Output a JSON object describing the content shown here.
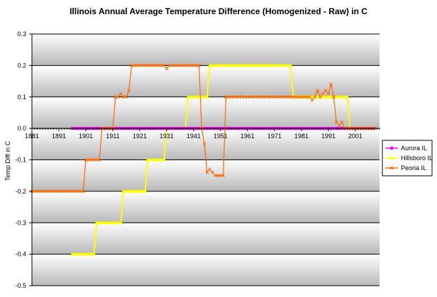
{
  "chart_data": {
    "type": "line",
    "title": "Illinois Annual Average Temperature Difference (Homogenized - Raw) in C",
    "xlabel": "",
    "ylabel": "Temp Diff in C",
    "xlim": [
      1881,
      2010
    ],
    "ylim": [
      -0.5,
      0.3
    ],
    "x_ticks": [
      "1881",
      "1891",
      "1901",
      "1911",
      "1921",
      "1931",
      "1941",
      "1951",
      "1961",
      "1971",
      "1981",
      "1991",
      "2001"
    ],
    "y_ticks": [
      "0.3",
      "0.2",
      "0.1",
      "0.0",
      "-0.1",
      "-0.2",
      "-0.3",
      "-0.4",
      "-0.5"
    ],
    "grid": true,
    "legend_position": "right",
    "series": [
      {
        "name": "Aurora IL",
        "color": "#ff00ff",
        "marker": "square",
        "points": [
          [
            1896,
            0.0
          ],
          [
            2008,
            0.0
          ]
        ],
        "step": 1
      },
      {
        "name": "Hillsboro IL",
        "color": "#ffff00",
        "marker": "triangle",
        "points": [
          [
            1896,
            -0.4
          ],
          [
            1904,
            -0.4
          ],
          [
            1905,
            -0.3
          ],
          [
            1914,
            -0.3
          ],
          [
            1915,
            -0.2
          ],
          [
            1923,
            -0.2
          ],
          [
            1924,
            -0.1
          ],
          [
            1930,
            -0.1
          ],
          [
            1931,
            0.0
          ],
          [
            1938,
            0.0
          ],
          [
            1939,
            0.1
          ],
          [
            1946,
            0.1
          ],
          [
            1947,
            0.2
          ],
          [
            1977,
            0.2
          ],
          [
            1978,
            0.1
          ],
          [
            1998,
            0.1
          ],
          [
            1999,
            0.0
          ],
          [
            2008,
            0.0
          ]
        ],
        "step": 1
      },
      {
        "name": "Peoria IL",
        "color": "#ff6600",
        "marker": "x",
        "points": [
          [
            1881,
            -0.2
          ],
          [
            1900,
            -0.2
          ],
          [
            1901,
            -0.1
          ],
          [
            1906,
            -0.1
          ],
          [
            1907,
            0.0
          ],
          [
            1911,
            0.0
          ],
          [
            1912,
            0.1
          ],
          [
            1913,
            0.1
          ],
          [
            1914,
            0.11
          ],
          [
            1915,
            0.1
          ],
          [
            1916,
            0.1
          ],
          [
            1917,
            0.12
          ],
          [
            1918,
            0.2
          ],
          [
            1930,
            0.2
          ],
          [
            1931,
            0.19
          ],
          [
            1932,
            0.2
          ],
          [
            1943,
            0.2
          ],
          [
            1944,
            0.0
          ],
          [
            1945,
            -0.05
          ],
          [
            1946,
            -0.14
          ],
          [
            1947,
            -0.13
          ],
          [
            1948,
            -0.14
          ],
          [
            1949,
            -0.15
          ],
          [
            1952,
            -0.15
          ],
          [
            1953,
            0.1
          ],
          [
            1984,
            0.1
          ],
          [
            1985,
            0.09
          ],
          [
            1986,
            0.1
          ],
          [
            1987,
            0.12
          ],
          [
            1988,
            0.1
          ],
          [
            1989,
            0.11
          ],
          [
            1990,
            0.12
          ],
          [
            1991,
            0.11
          ],
          [
            1992,
            0.14
          ],
          [
            1993,
            0.1
          ],
          [
            1994,
            0.02
          ],
          [
            1995,
            0.01
          ],
          [
            1996,
            0.02
          ],
          [
            1997,
            0.0
          ],
          [
            2008,
            0.0
          ]
        ],
        "step": 1
      }
    ]
  }
}
